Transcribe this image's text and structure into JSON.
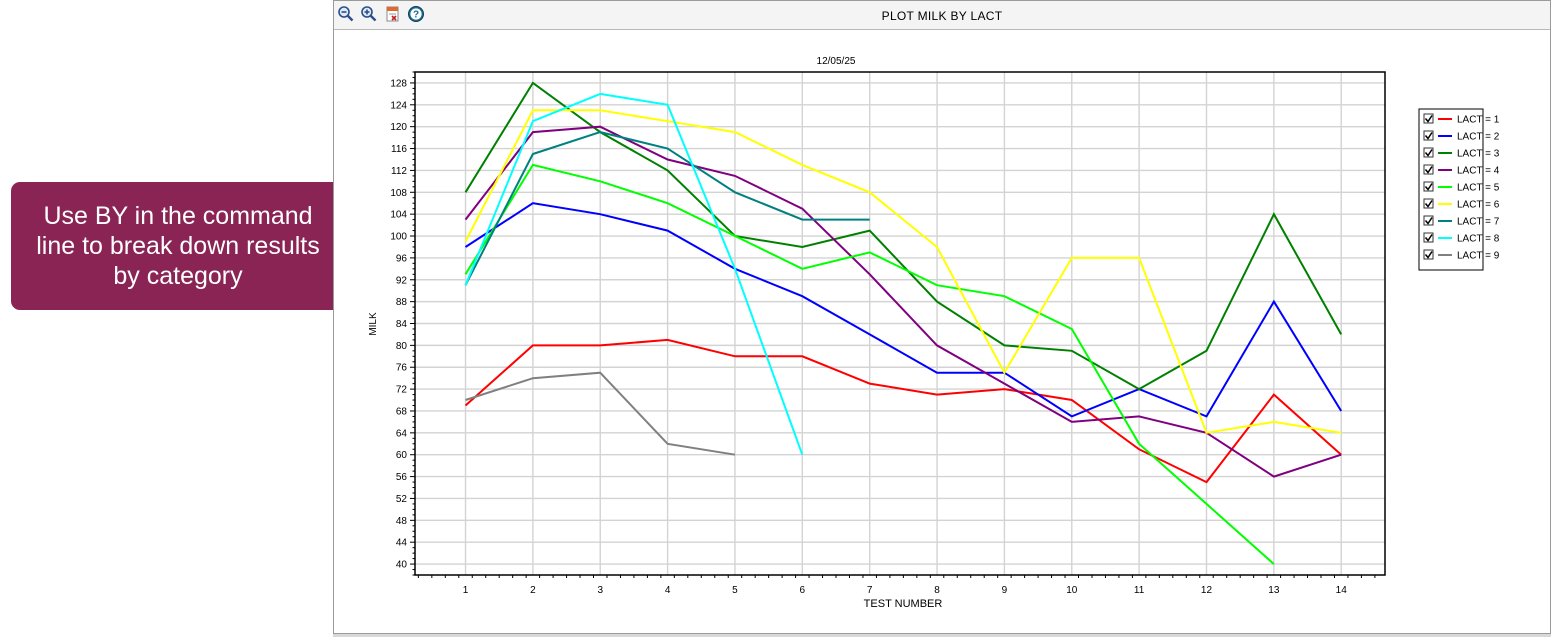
{
  "callout": {
    "text": "Use BY in the command line to break down results by category"
  },
  "window": {
    "title": "PLOT MILK BY LACT",
    "toolbar": [
      {
        "name": "zoom-out-icon"
      },
      {
        "name": "zoom-in-icon"
      },
      {
        "name": "export-icon"
      },
      {
        "name": "help-icon"
      }
    ]
  },
  "chart_data": {
    "type": "line",
    "title": "12/05/25",
    "xlabel": "TEST NUMBER",
    "ylabel": "MILK",
    "ylim": [
      38,
      130
    ],
    "xlim": [
      0.25,
      14.65
    ],
    "x_ticks": [
      1,
      2,
      3,
      4,
      5,
      6,
      7,
      8,
      9,
      10,
      11,
      12,
      13,
      14
    ],
    "y_ticks": [
      40,
      44,
      48,
      52,
      56,
      60,
      64,
      68,
      72,
      76,
      80,
      84,
      88,
      92,
      96,
      100,
      104,
      108,
      112,
      116,
      120,
      124,
      128
    ],
    "grid": true,
    "legend_position": "right",
    "series": [
      {
        "name": "LACT = 1",
        "color": "#ff0000",
        "x": [
          1,
          2,
          3,
          4,
          5,
          6,
          7,
          8,
          9,
          10,
          11,
          12,
          13,
          14
        ],
        "y": [
          69,
          80,
          80,
          81,
          78,
          78,
          73,
          71,
          72,
          70,
          61,
          55,
          71,
          60
        ]
      },
      {
        "name": "LACT = 2",
        "color": "#0000ff",
        "x": [
          1,
          2,
          3,
          4,
          5,
          6,
          7,
          8,
          9,
          10,
          11,
          12,
          13,
          14
        ],
        "y": [
          98,
          106,
          104,
          101,
          94,
          89,
          82,
          75,
          75,
          67,
          72,
          67,
          88,
          68
        ]
      },
      {
        "name": "LACT = 3",
        "color": "#008000",
        "x": [
          1,
          2,
          3,
          4,
          5,
          6,
          7,
          8,
          9,
          10,
          11,
          12,
          13,
          14
        ],
        "y": [
          108,
          128,
          119,
          112,
          100,
          98,
          101,
          88,
          80,
          79,
          72,
          79,
          104,
          82
        ]
      },
      {
        "name": "LACT = 4",
        "color": "#800080",
        "x": [
          1,
          2,
          3,
          4,
          5,
          6,
          7,
          8,
          9,
          10,
          11,
          12,
          13,
          14
        ],
        "y": [
          103,
          119,
          120,
          114,
          111,
          105,
          93,
          80,
          73,
          66,
          67,
          64,
          56,
          60
        ]
      },
      {
        "name": "LACT = 5",
        "color": "#00ff00",
        "x": [
          1,
          2,
          3,
          4,
          5,
          6,
          7,
          8,
          9,
          10,
          11,
          12,
          13
        ],
        "y": [
          93,
          113,
          110,
          106,
          100,
          94,
          97,
          91,
          89,
          83,
          62,
          51,
          40
        ]
      },
      {
        "name": "LACT = 6",
        "color": "#ffff00",
        "x": [
          1,
          2,
          3,
          4,
          5,
          6,
          7,
          8,
          9,
          10,
          11,
          12,
          13,
          14
        ],
        "y": [
          99,
          123,
          123,
          121,
          119,
          113,
          108,
          98,
          75,
          96,
          96,
          64,
          66,
          64
        ]
      },
      {
        "name": "LACT = 7",
        "color": "#008080",
        "x": [
          1,
          2,
          3,
          4,
          5,
          6,
          7
        ],
        "y": [
          91,
          115,
          119,
          116,
          108,
          103,
          103
        ]
      },
      {
        "name": "LACT = 8",
        "color": "#00ffff",
        "x": [
          1,
          2,
          3,
          4,
          5,
          6
        ],
        "y": [
          91,
          121,
          126,
          124,
          94,
          60
        ]
      },
      {
        "name": "LACT = 9",
        "color": "#808080",
        "x": [
          1,
          2,
          3,
          4,
          5
        ],
        "y": [
          70,
          74,
          75,
          62,
          60
        ]
      }
    ]
  }
}
